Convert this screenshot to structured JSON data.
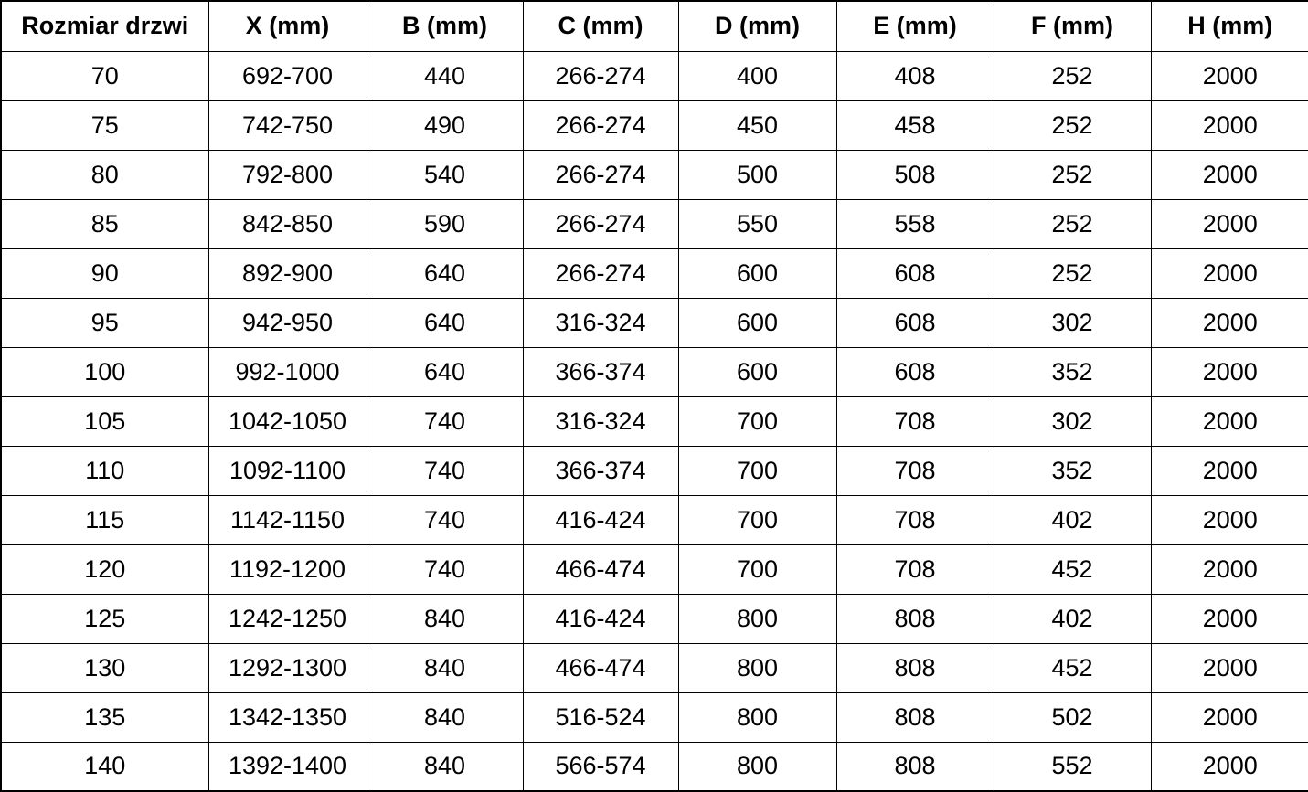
{
  "colors": {
    "background": "#ffffff",
    "text": "#000000",
    "border": "#000000"
  },
  "table": {
    "columns": [
      "Rozmiar drzwi",
      "X (mm)",
      "B (mm)",
      "C (mm)",
      "D (mm)",
      "E (mm)",
      "F (mm)",
      "H (mm)"
    ],
    "rows": [
      [
        "70",
        "692-700",
        "440",
        "266-274",
        "400",
        "408",
        "252",
        "2000"
      ],
      [
        "75",
        "742-750",
        "490",
        "266-274",
        "450",
        "458",
        "252",
        "2000"
      ],
      [
        "80",
        "792-800",
        "540",
        "266-274",
        "500",
        "508",
        "252",
        "2000"
      ],
      [
        "85",
        "842-850",
        "590",
        "266-274",
        "550",
        "558",
        "252",
        "2000"
      ],
      [
        "90",
        "892-900",
        "640",
        "266-274",
        "600",
        "608",
        "252",
        "2000"
      ],
      [
        "95",
        "942-950",
        "640",
        "316-324",
        "600",
        "608",
        "302",
        "2000"
      ],
      [
        "100",
        "992-1000",
        "640",
        "366-374",
        "600",
        "608",
        "352",
        "2000"
      ],
      [
        "105",
        "1042-1050",
        "740",
        "316-324",
        "700",
        "708",
        "302",
        "2000"
      ],
      [
        "110",
        "1092-1100",
        "740",
        "366-374",
        "700",
        "708",
        "352",
        "2000"
      ],
      [
        "115",
        "1142-1150",
        "740",
        "416-424",
        "700",
        "708",
        "402",
        "2000"
      ],
      [
        "120",
        "1192-1200",
        "740",
        "466-474",
        "700",
        "708",
        "452",
        "2000"
      ],
      [
        "125",
        "1242-1250",
        "840",
        "416-424",
        "800",
        "808",
        "402",
        "2000"
      ],
      [
        "130",
        "1292-1300",
        "840",
        "466-474",
        "800",
        "808",
        "452",
        "2000"
      ],
      [
        "135",
        "1342-1350",
        "840",
        "516-524",
        "800",
        "808",
        "502",
        "2000"
      ],
      [
        "140",
        "1392-1400",
        "840",
        "566-574",
        "800",
        "808",
        "552",
        "2000"
      ]
    ]
  }
}
